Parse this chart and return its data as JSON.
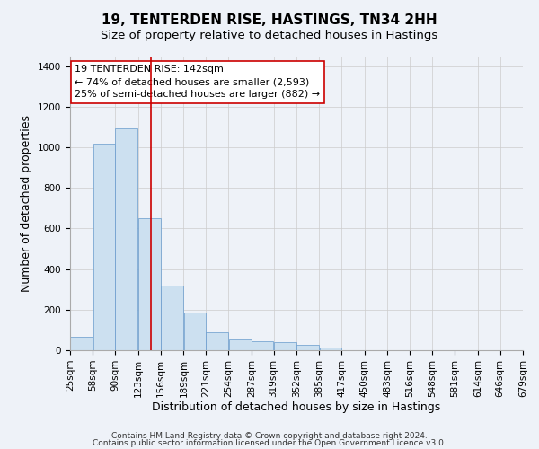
{
  "title": "19, TENTERDEN RISE, HASTINGS, TN34 2HH",
  "subtitle": "Size of property relative to detached houses in Hastings",
  "xlabel": "Distribution of detached houses by size in Hastings",
  "ylabel": "Number of detached properties",
  "footnote1": "Contains HM Land Registry data © Crown copyright and database right 2024.",
  "footnote2": "Contains public sector information licensed under the Open Government Licence v3.0.",
  "bar_color": "#cce0f0",
  "bar_edge_color": "#6699cc",
  "grid_color": "#cccccc",
  "bg_color": "#eef2f8",
  "annotation_line_color": "#cc0000",
  "annotation_box_color": "#cc0000",
  "annotation_text_color": "#000000",
  "annotation_bg": "#ffffff",
  "property_size": 142,
  "annotation_label": "19 TENTERDEN RISE: 142sqm",
  "annotation_line1": "← 74% of detached houses are smaller (2,593)",
  "annotation_line2": "25% of semi-detached houses are larger (882) →",
  "bin_edges": [
    25,
    58,
    90,
    123,
    156,
    189,
    221,
    254,
    287,
    319,
    352,
    385,
    417,
    450,
    483,
    516,
    548,
    581,
    614,
    646,
    679
  ],
  "bar_heights": [
    65,
    1020,
    1095,
    650,
    320,
    185,
    90,
    55,
    45,
    40,
    28,
    15,
    0,
    0,
    0,
    0,
    0,
    0,
    0,
    0
  ],
  "ylim": [
    0,
    1450
  ],
  "yticks": [
    0,
    200,
    400,
    600,
    800,
    1000,
    1200,
    1400
  ],
  "red_line_x": 142,
  "title_fontsize": 11,
  "subtitle_fontsize": 9.5,
  "axis_label_fontsize": 9,
  "tick_fontsize": 7.5,
  "annotation_fontsize": 8,
  "footnote_fontsize": 6.5
}
